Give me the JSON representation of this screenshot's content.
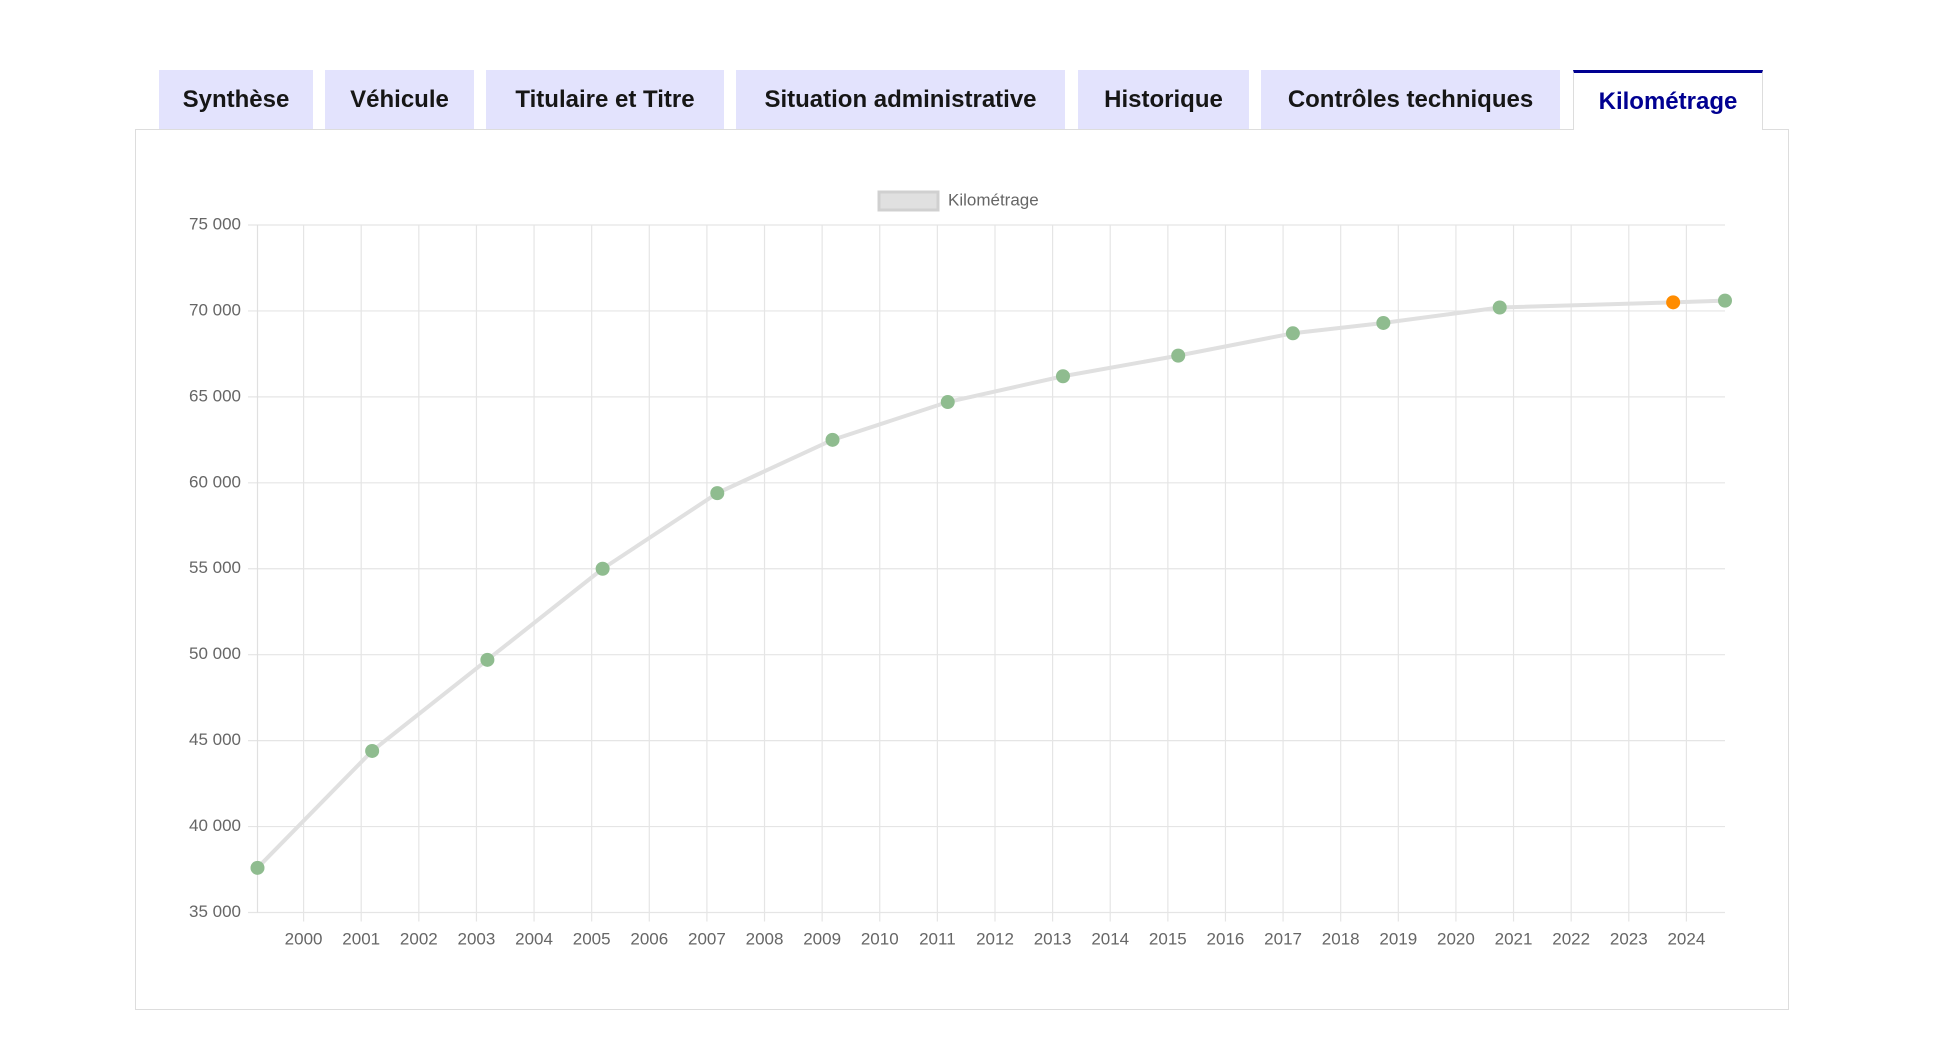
{
  "tabs": [
    "Synthèse",
    "Véhicule",
    "Titulaire et Titre",
    "Situation administrative",
    "Historique",
    "Contrôles techniques",
    "Kilométrage"
  ],
  "chart_data": {
    "type": "line",
    "series": [
      {
        "name": "Kilométrage",
        "color": "#e0e0e0",
        "x": [
          1999.2,
          2001.19,
          2003.19,
          2005.19,
          2007.18,
          2009.18,
          2011.18,
          2013.18,
          2015.18,
          2017.17,
          2018.74,
          2020.76,
          2023.77,
          2024.67
        ],
        "values": [
          37600,
          44400,
          49700,
          55000,
          59400,
          62500,
          64700,
          66200,
          67400,
          68700,
          69300,
          70200,
          70500,
          70600
        ],
        "point_colors": [
          "#8fbc8f",
          "#8fbc8f",
          "#8fbc8f",
          "#8fbc8f",
          "#8fbc8f",
          "#8fbc8f",
          "#8fbc8f",
          "#8fbc8f",
          "#8fbc8f",
          "#8fbc8f",
          "#8fbc8f",
          "#8fbc8f",
          "#ff8c00",
          "#8fbc8f"
        ]
      }
    ],
    "xlim": [
      1999.2,
      2024.67
    ],
    "xticks": [
      2000,
      2001,
      2002,
      2003,
      2004,
      2005,
      2006,
      2007,
      2008,
      2009,
      2010,
      2011,
      2012,
      2013,
      2014,
      2015,
      2016,
      2017,
      2018,
      2019,
      2020,
      2021,
      2022,
      2023,
      2024
    ],
    "ylim": [
      35000,
      75000
    ],
    "yticks": [
      {
        "value": 35000,
        "label": "35 000"
      },
      {
        "value": 40000,
        "label": "40 000"
      },
      {
        "value": 45000,
        "label": "45 000"
      },
      {
        "value": 50000,
        "label": "50 000"
      },
      {
        "value": 55000,
        "label": "55 000"
      },
      {
        "value": 60000,
        "label": "60 000"
      },
      {
        "value": 65000,
        "label": "65 000"
      },
      {
        "value": 70000,
        "label": "70 000"
      },
      {
        "value": 75000,
        "label": "75 000"
      }
    ],
    "grid": true,
    "legend": "top"
  }
}
